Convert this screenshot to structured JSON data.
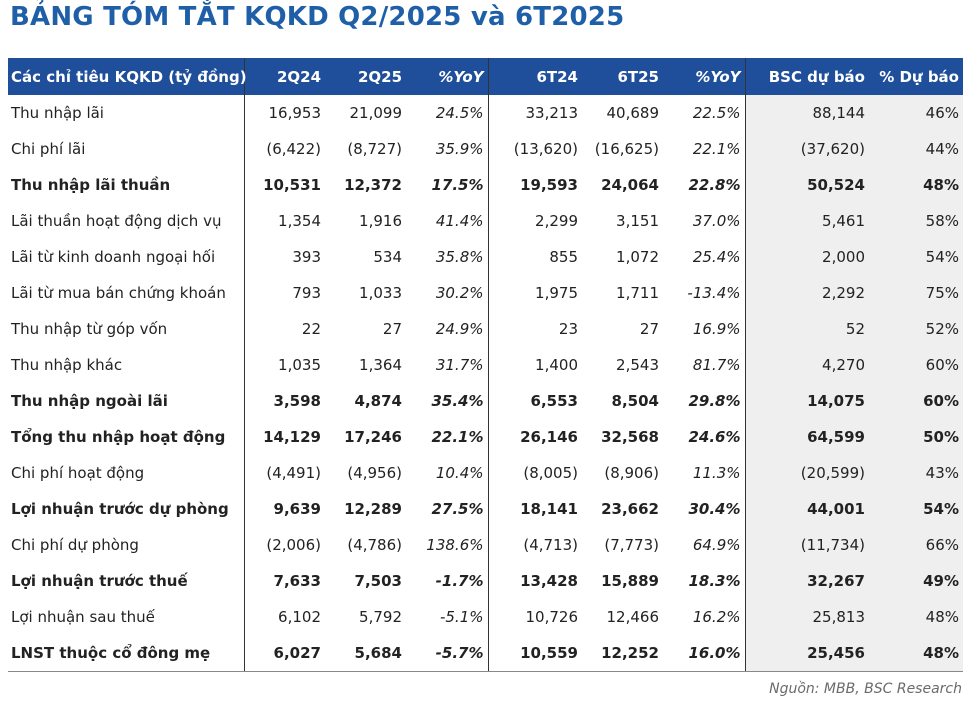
{
  "title": "BẢNG TÓM TẮT KQKD Q2/2025 và 6T2025",
  "headers": [
    "Các chỉ tiêu KQKD (tỷ đồng)",
    "2Q24",
    "2Q25",
    "%YoY",
    "6T24",
    "6T25",
    "%YoY",
    "BSC dự báo",
    "% Dự báo"
  ],
  "rows": [
    {
      "bold": false,
      "cells": [
        "Thu nhập lãi",
        "16,953",
        "21,099",
        "24.5%",
        "33,213",
        "40,689",
        "22.5%",
        "88,144",
        "46%"
      ]
    },
    {
      "bold": false,
      "cells": [
        "Chi phí lãi",
        "(6,422)",
        "(8,727)",
        "35.9%",
        "(13,620)",
        "(16,625)",
        "22.1%",
        "(37,620)",
        "44%"
      ]
    },
    {
      "bold": true,
      "cells": [
        "Thu nhập lãi thuần",
        "10,531",
        "12,372",
        "17.5%",
        "19,593",
        "24,064",
        "22.8%",
        "50,524",
        "48%"
      ]
    },
    {
      "bold": false,
      "cells": [
        "Lãi thuần hoạt động dịch vụ",
        "1,354",
        "1,916",
        "41.4%",
        "2,299",
        "3,151",
        "37.0%",
        "5,461",
        "58%"
      ]
    },
    {
      "bold": false,
      "cells": [
        "Lãi từ kinh doanh ngoại hối",
        "393",
        "534",
        "35.8%",
        "855",
        "1,072",
        "25.4%",
        "2,000",
        "54%"
      ]
    },
    {
      "bold": false,
      "cells": [
        "Lãi từ mua bán chứng khoán",
        "793",
        "1,033",
        "30.2%",
        "1,975",
        "1,711",
        "-13.4%",
        "2,292",
        "75%"
      ]
    },
    {
      "bold": false,
      "cells": [
        "Thu nhập từ góp vốn",
        "22",
        "27",
        "24.9%",
        "23",
        "27",
        "16.9%",
        "52",
        "52%"
      ]
    },
    {
      "bold": false,
      "cells": [
        "Thu nhập khác",
        "1,035",
        "1,364",
        "31.7%",
        "1,400",
        "2,543",
        "81.7%",
        "4,270",
        "60%"
      ]
    },
    {
      "bold": true,
      "cells": [
        "Thu nhập ngoài lãi",
        "3,598",
        "4,874",
        "35.4%",
        "6,553",
        "8,504",
        "29.8%",
        "14,075",
        "60%"
      ]
    },
    {
      "bold": true,
      "cells": [
        "Tổng thu nhập hoạt động",
        "14,129",
        "17,246",
        "22.1%",
        "26,146",
        "32,568",
        "24.6%",
        "64,599",
        "50%"
      ]
    },
    {
      "bold": false,
      "cells": [
        "Chi phí hoạt động",
        "(4,491)",
        "(4,956)",
        "10.4%",
        "(8,005)",
        "(8,906)",
        "11.3%",
        "(20,599)",
        "43%"
      ]
    },
    {
      "bold": true,
      "cells": [
        "Lợi nhuận trước dự phòng",
        "9,639",
        "12,289",
        "27.5%",
        "18,141",
        "23,662",
        "30.4%",
        "44,001",
        "54%"
      ]
    },
    {
      "bold": false,
      "cells": [
        "Chi phí dự phòng",
        "(2,006)",
        "(4,786)",
        "138.6%",
        "(4,713)",
        "(7,773)",
        "64.9%",
        "(11,734)",
        "66%"
      ]
    },
    {
      "bold": true,
      "cells": [
        "Lợi nhuận trước thuế",
        "7,633",
        "7,503",
        "-1.7%",
        "13,428",
        "15,889",
        "18.3%",
        "32,267",
        "49%"
      ]
    },
    {
      "bold": false,
      "cells": [
        "Lợi nhuận sau thuế",
        "6,102",
        "5,792",
        "-5.1%",
        "10,726",
        "12,466",
        "16.2%",
        "25,813",
        "48%"
      ]
    },
    {
      "bold": true,
      "cells": [
        "LNST thuộc cổ đông mẹ",
        "6,027",
        "5,684",
        "-5.7%",
        "10,559",
        "12,252",
        "16.0%",
        "25,456",
        "48%"
      ]
    }
  ],
  "source": "Nguồn: MBB, BSC Research"
}
